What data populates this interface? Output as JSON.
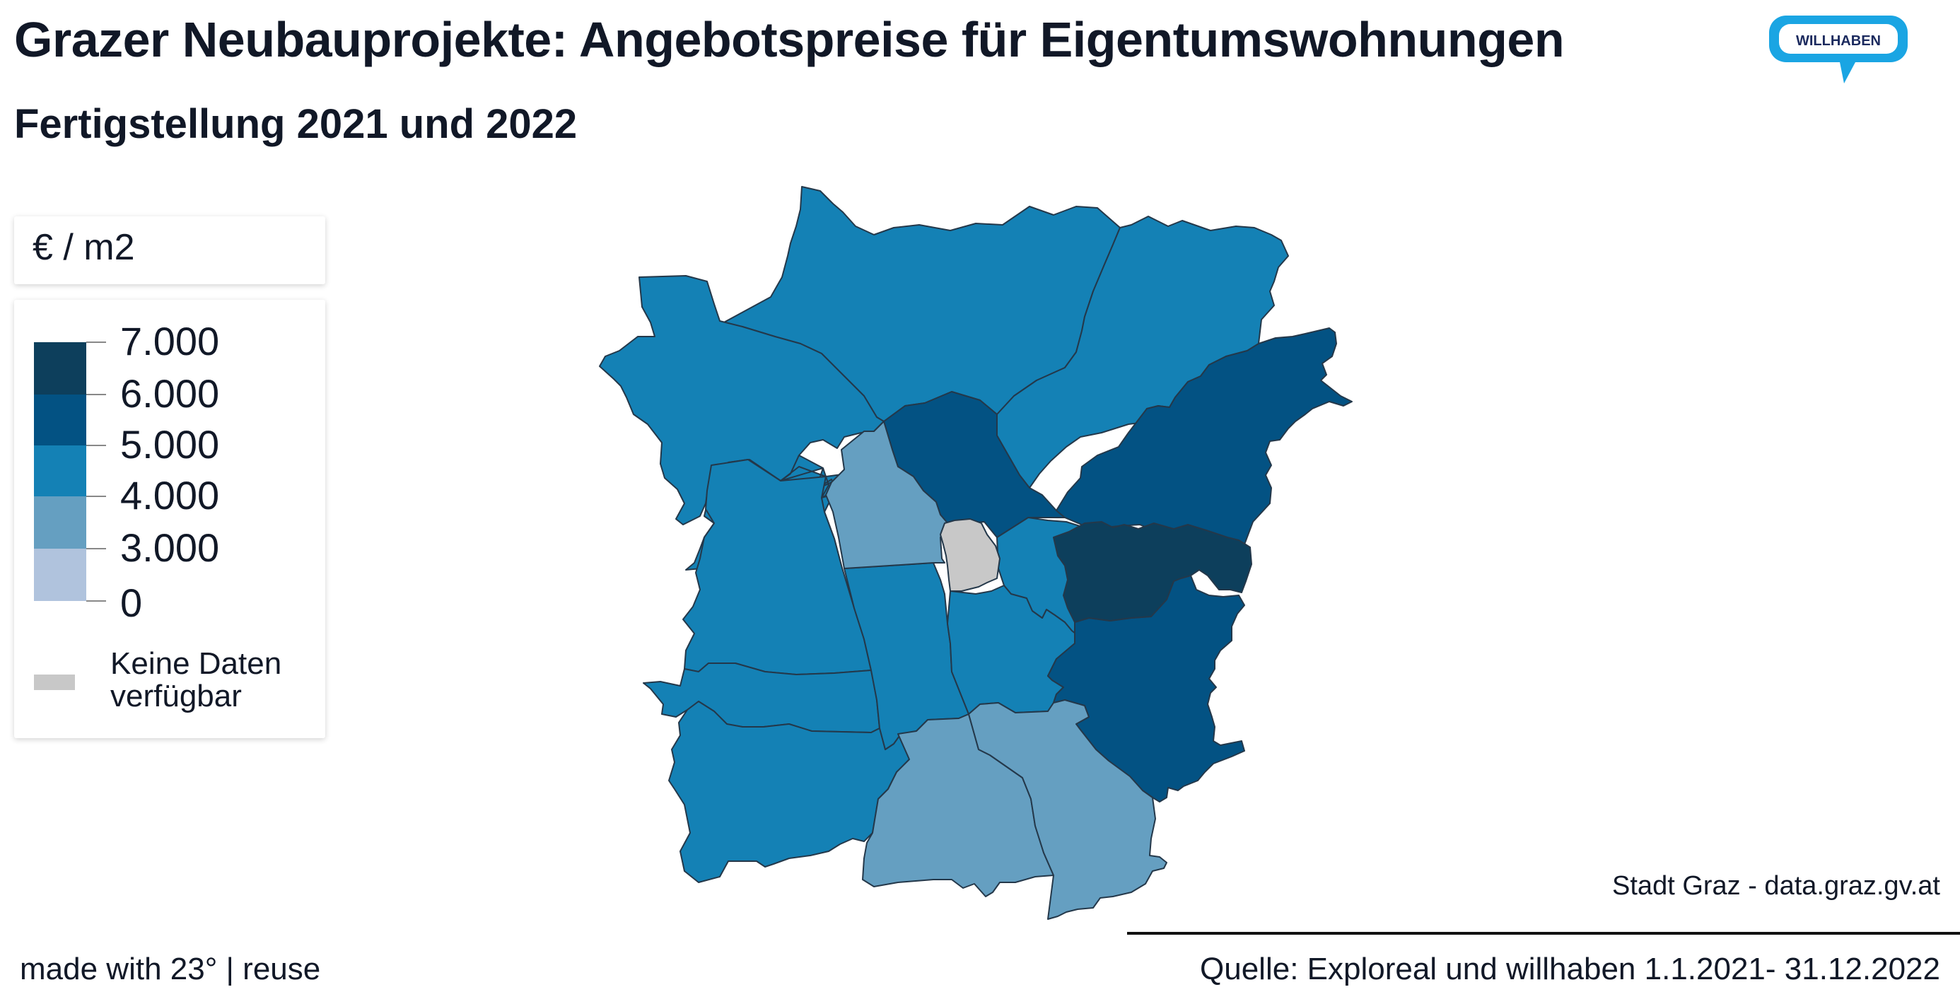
{
  "title": "Grazer Neubauprojekte: Angebotspreise für Eigentumswohnungen",
  "subtitle": "Fertigstellung 2021 und 2022",
  "logo_text": "WILLHABEN",
  "legend": {
    "unit": "€ / m2",
    "ticks": [
      "7.000",
      "6.000",
      "5.000",
      "4.000",
      "3.000",
      "0"
    ],
    "colors": [
      "#0d3f5c",
      "#035283",
      "#1481b5",
      "#659fc1",
      "#b0c3dd"
    ],
    "no_data_label": "Keine Daten verfügbar",
    "no_data_color": "#c8c8c8"
  },
  "attribution": "Stadt Graz - data.graz.gv.at",
  "footer": {
    "made_with": "made with 23° | reuse",
    "source": "Quelle: Exploreal und willhaben 1.1.2021- 31.12.2022"
  }
}
